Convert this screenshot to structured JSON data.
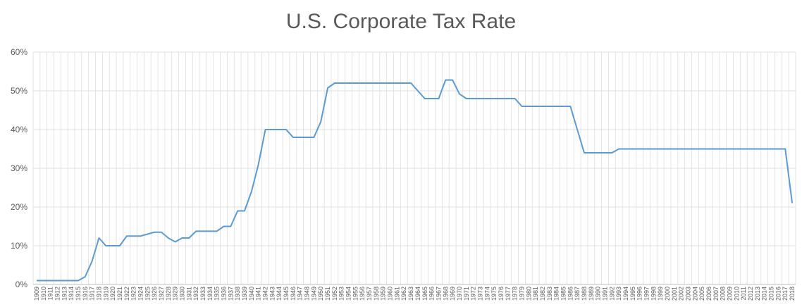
{
  "chart_data": {
    "type": "line",
    "title": "U.S. Corporate Tax Rate",
    "xlabel": "",
    "ylabel": "",
    "ylim": [
      0,
      0.6
    ],
    "yticks": [
      0,
      0.1,
      0.2,
      0.3,
      0.4,
      0.5,
      0.6
    ],
    "ytick_labels": [
      "0%",
      "10%",
      "20%",
      "30%",
      "40%",
      "50%",
      "60%"
    ],
    "grid": true,
    "legend": "none",
    "series_color": "#5b9bd5",
    "x": [
      1909,
      1910,
      1911,
      1912,
      1913,
      1914,
      1915,
      1916,
      1917,
      1918,
      1919,
      1920,
      1921,
      1922,
      1923,
      1924,
      1925,
      1926,
      1927,
      1928,
      1929,
      1930,
      1931,
      1932,
      1933,
      1934,
      1935,
      1936,
      1937,
      1938,
      1939,
      1940,
      1941,
      1942,
      1943,
      1944,
      1945,
      1946,
      1947,
      1948,
      1949,
      1950,
      1951,
      1952,
      1953,
      1954,
      1955,
      1956,
      1957,
      1958,
      1959,
      1960,
      1961,
      1962,
      1963,
      1964,
      1965,
      1966,
      1967,
      1968,
      1969,
      1970,
      1971,
      1972,
      1973,
      1974,
      1975,
      1976,
      1977,
      1978,
      1979,
      1980,
      1981,
      1982,
      1983,
      1984,
      1985,
      1986,
      1987,
      1988,
      1989,
      1990,
      1991,
      1992,
      1993,
      1994,
      1995,
      1996,
      1997,
      1998,
      1999,
      2000,
      2001,
      2002,
      2003,
      2004,
      2005,
      2006,
      2007,
      2008,
      2009,
      2010,
      2011,
      2012,
      2013,
      2014,
      2015,
      2016,
      2017,
      2018
    ],
    "values": [
      0.01,
      0.01,
      0.01,
      0.01,
      0.01,
      0.01,
      0.01,
      0.02,
      0.06,
      0.12,
      0.1,
      0.1,
      0.1,
      0.125,
      0.125,
      0.125,
      0.13,
      0.135,
      0.135,
      0.12,
      0.11,
      0.12,
      0.12,
      0.1375,
      0.1375,
      0.1375,
      0.1375,
      0.15,
      0.15,
      0.19,
      0.19,
      0.24,
      0.31,
      0.4,
      0.4,
      0.4,
      0.4,
      0.38,
      0.38,
      0.38,
      0.38,
      0.42,
      0.5075,
      0.52,
      0.52,
      0.52,
      0.52,
      0.52,
      0.52,
      0.52,
      0.52,
      0.52,
      0.52,
      0.52,
      0.52,
      0.5,
      0.48,
      0.48,
      0.48,
      0.528,
      0.528,
      0.492,
      0.48,
      0.48,
      0.48,
      0.48,
      0.48,
      0.48,
      0.48,
      0.48,
      0.46,
      0.46,
      0.46,
      0.46,
      0.46,
      0.46,
      0.46,
      0.46,
      0.4,
      0.34,
      0.34,
      0.34,
      0.34,
      0.34,
      0.35,
      0.35,
      0.35,
      0.35,
      0.35,
      0.35,
      0.35,
      0.35,
      0.35,
      0.35,
      0.35,
      0.35,
      0.35,
      0.35,
      0.35,
      0.35,
      0.35,
      0.35,
      0.35,
      0.35,
      0.35,
      0.35,
      0.35,
      0.35,
      0.35,
      0.21
    ]
  }
}
